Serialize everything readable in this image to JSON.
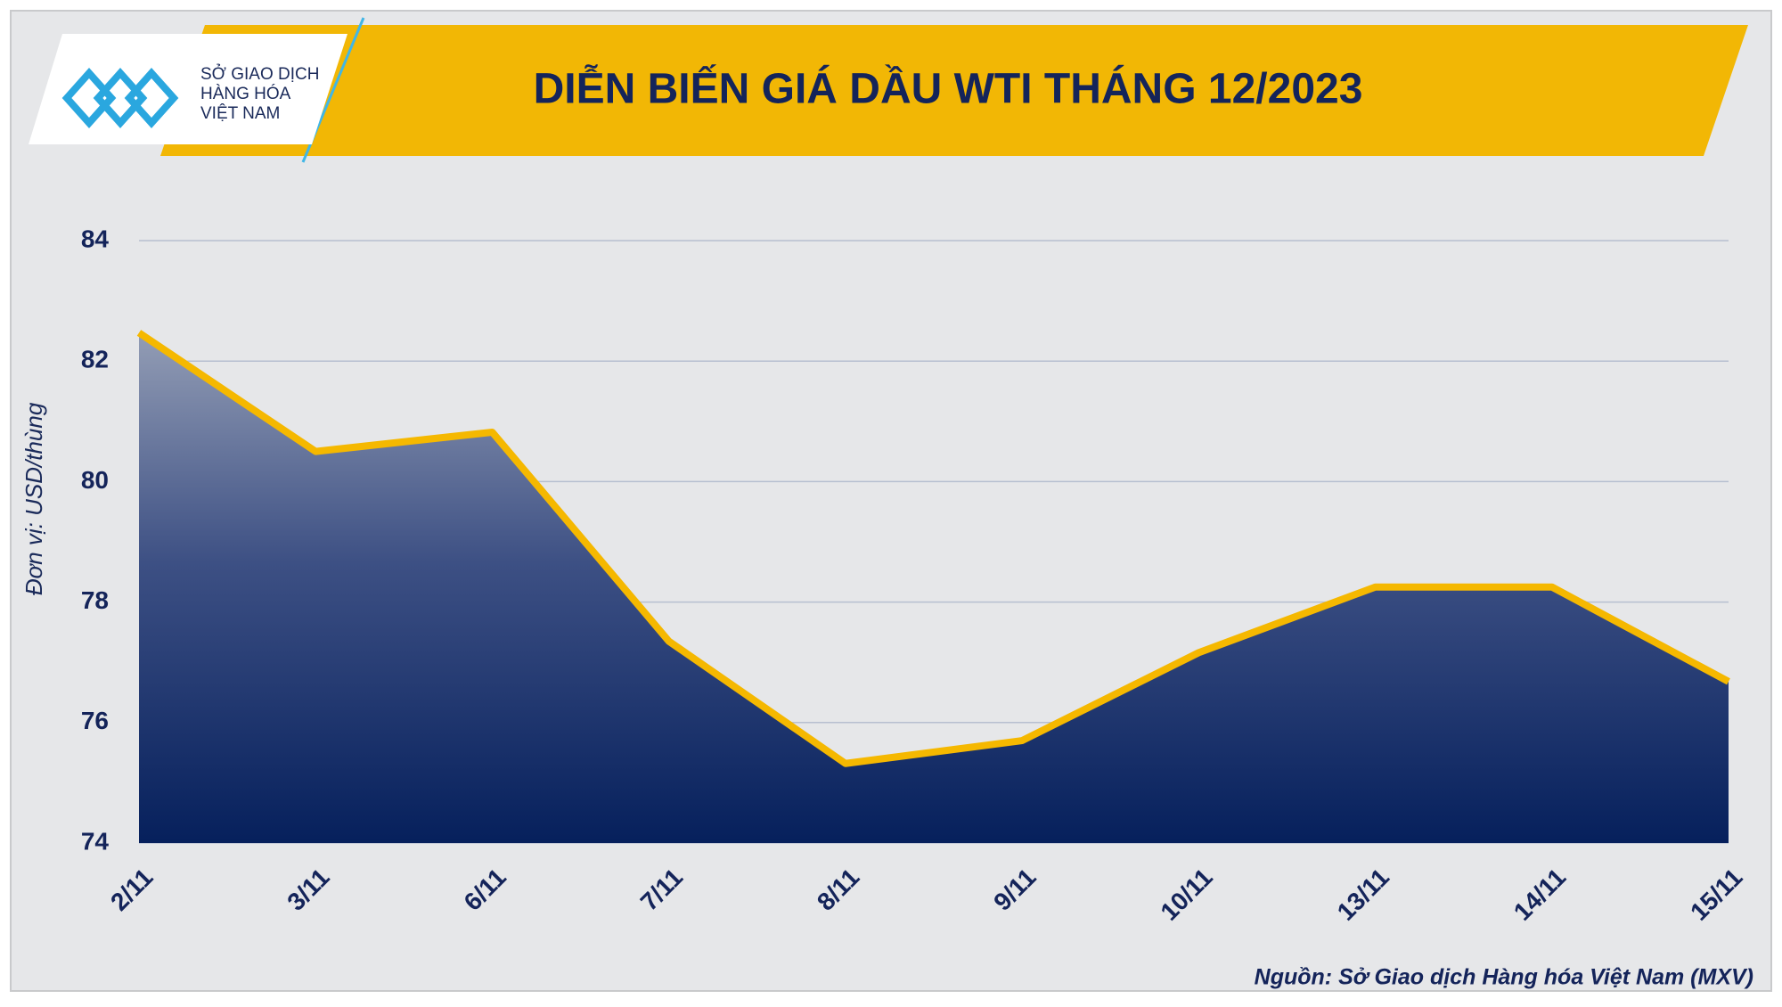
{
  "logo": [
    "SỞ GIAO DỊCH",
    "HÀNG HÓA",
    "VIỆT NAM"
  ],
  "chart_data": {
    "type": "area",
    "title": "DIỄN BIẾN GIÁ DẦU WTI THÁNG 12/2023",
    "y_label": "Đơn vị: USD/thùng",
    "source": "Nguồn: Sở Giao dịch Hàng hóa Việt Nam (MXV)",
    "categories": [
      "2/11",
      "3/11",
      "6/11",
      "7/11",
      "8/11",
      "9/11",
      "10/11",
      "13/11",
      "14/11",
      "15/11"
    ],
    "values": [
      82.47,
      80.5,
      80.82,
      77.35,
      75.32,
      75.7,
      77.16,
      78.25,
      78.25,
      76.68
    ],
    "color": "#f5b800",
    "ylim": [
      74,
      84
    ],
    "yticks": [
      74,
      76,
      78,
      80,
      82,
      84
    ],
    "grid": true
  }
}
